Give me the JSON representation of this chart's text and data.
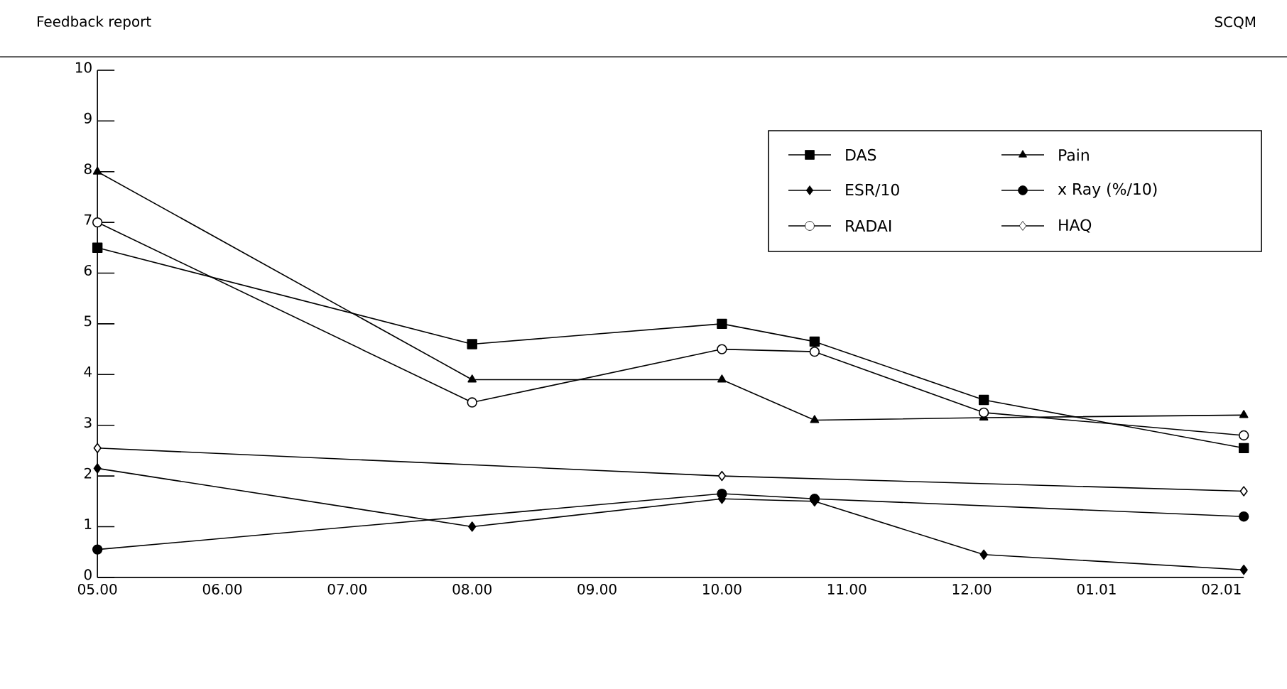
{
  "chart_data": {
    "type": "line",
    "title": "Feedback report",
    "subtitle": "SCQM",
    "series": [
      {
        "name": "DAS",
        "color": "#000000",
        "marker": "square",
        "x": [
          "2000-05-01",
          "2000-08-01",
          "2000-10-01",
          "2000-10-24",
          "2000-12-04",
          "2001-02-06"
        ],
        "values": [
          6.5,
          4.6,
          5.0,
          4.65,
          3.5,
          2.55
        ]
      },
      {
        "name": "Pain",
        "color": "#000000",
        "marker": "triangle",
        "x": [
          "2000-05-01",
          "2000-08-01",
          "2000-10-01",
          "2000-10-24",
          "2000-12-04",
          "2001-02-06"
        ],
        "values": [
          8.0,
          3.9,
          3.9,
          3.1,
          3.15,
          3.2
        ]
      },
      {
        "name": "ESR/10",
        "color": "#000000",
        "marker": "diamond",
        "x": [
          "2000-05-01",
          "2000-08-01",
          "2000-10-01",
          "2000-10-24",
          "2000-12-04",
          "2001-02-06"
        ],
        "values": [
          2.15,
          1.0,
          1.55,
          1.5,
          0.45,
          0.15
        ]
      },
      {
        "name": "x Ray (%/10)",
        "color": "#000000",
        "marker": "circle",
        "x": [
          "2000-05-01",
          "2000-10-01",
          "2000-10-24",
          "2001-02-06"
        ],
        "values": [
          0.55,
          1.65,
          1.55,
          1.2
        ]
      },
      {
        "name": "RADAI",
        "color": "#000000",
        "marker": "circle",
        "colors": [
          "#ffffff",
          "#ffffff",
          "#ffffff",
          "#ffffff",
          "#ffffff",
          "#ffffff"
        ],
        "x": [
          "2000-05-01",
          "2000-08-01",
          "2000-10-01",
          "2000-10-24",
          "2000-12-04",
          "2001-02-06"
        ],
        "values": [
          7.0,
          3.45,
          4.5,
          4.45,
          3.25,
          2.8
        ]
      },
      {
        "name": "HAQ",
        "color": "#000000",
        "marker": "diamond",
        "colors": [
          "#ffffff",
          "#ffffff",
          "#ffffff"
        ],
        "x": [
          "2000-05-01",
          "2000-10-01",
          "2001-02-06"
        ],
        "values": [
          2.55,
          2.0,
          1.7
        ]
      }
    ],
    "xlim": [
      "2000-05-01",
      "2001-02-06"
    ],
    "xticks": [
      {
        "value": "2000-05",
        "label": "05.00"
      },
      {
        "value": "2000-06",
        "label": "06.00"
      },
      {
        "value": "2000-07",
        "label": "07.00"
      },
      {
        "value": "2000-08",
        "label": "08.00"
      },
      {
        "value": "2000-09",
        "label": "09.00"
      },
      {
        "value": "2000-10",
        "label": "10.00"
      },
      {
        "value": "2000-11",
        "label": "11.00"
      },
      {
        "value": "2000-12",
        "label": "12.00"
      },
      {
        "value": "2001-01",
        "label": "01.01"
      },
      {
        "value": "2001-02",
        "label": "02.01"
      }
    ],
    "ylim": [
      0,
      10
    ],
    "yticks": [
      0,
      1,
      2,
      3,
      4,
      5,
      6,
      7,
      8,
      9,
      10
    ],
    "grid": false,
    "legend": "top right",
    "line_style": "solid"
  }
}
